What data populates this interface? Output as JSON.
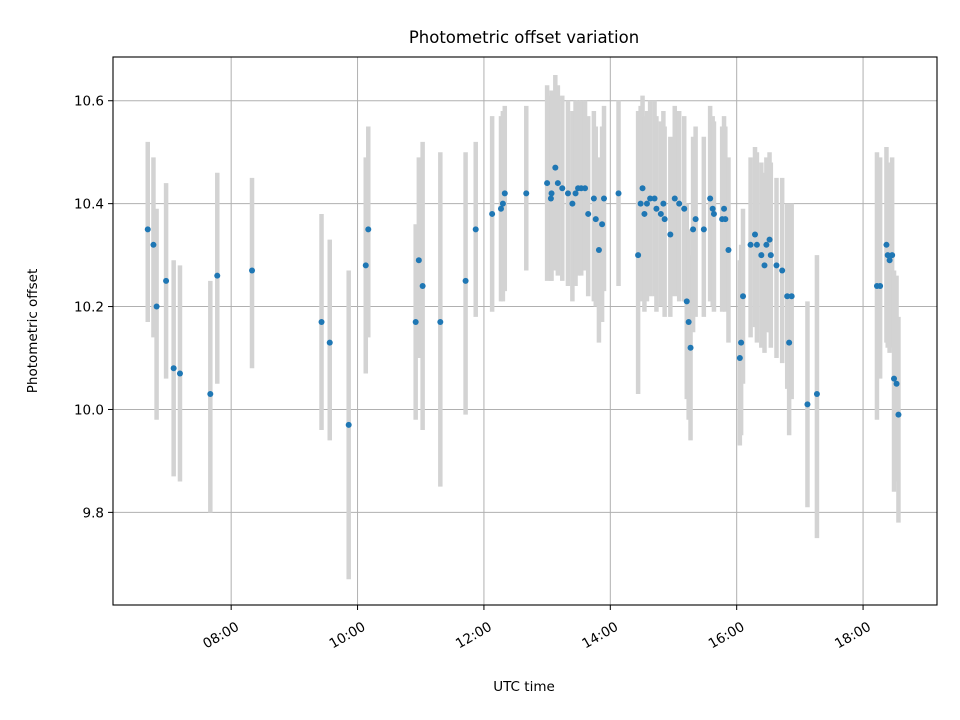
{
  "chart_data": {
    "type": "scatter",
    "title": "Photometric offset variation",
    "xlabel": "UTC time",
    "ylabel": "Photometric offset",
    "xlim_hours": [
      6.13,
      19.17
    ],
    "ylim": [
      9.62,
      10.685
    ],
    "grid": true,
    "x_ticks": [
      {
        "hour": 8,
        "label": "08:00"
      },
      {
        "hour": 10,
        "label": "10:00"
      },
      {
        "hour": 12,
        "label": "12:00"
      },
      {
        "hour": 14,
        "label": "14:00"
      },
      {
        "hour": 16,
        "label": "16:00"
      },
      {
        "hour": 18,
        "label": "18:00"
      }
    ],
    "y_ticks": [
      {
        "value": 9.8,
        "label": "9.8"
      },
      {
        "value": 10.0,
        "label": "10.0"
      },
      {
        "value": 10.2,
        "label": "10.2"
      },
      {
        "value": 10.4,
        "label": "10.4"
      },
      {
        "value": 10.6,
        "label": "10.6"
      }
    ],
    "colors": {
      "point": "#1f77b4",
      "errorbar": "#d3d3d3",
      "grid": "#b0b0b0"
    },
    "x_hours": [
      6.68,
      6.77,
      6.82,
      6.97,
      7.09,
      7.19,
      7.67,
      7.78,
      8.33,
      9.43,
      9.56,
      9.86,
      10.13,
      10.17,
      10.92,
      10.97,
      11.03,
      11.31,
      11.71,
      11.87,
      12.13,
      12.27,
      12.3,
      12.33,
      12.67,
      13.0,
      13.06,
      13.07,
      13.13,
      13.17,
      13.24,
      13.33,
      13.4,
      13.45,
      13.49,
      13.54,
      13.6,
      13.65,
      13.74,
      13.77,
      13.82,
      13.87,
      13.9,
      14.13,
      14.44,
      14.48,
      14.51,
      14.54,
      14.58,
      14.63,
      14.7,
      14.73,
      14.8,
      14.84,
      14.86,
      14.95,
      15.02,
      15.09,
      15.17,
      15.21,
      15.24,
      15.27,
      15.31,
      15.35,
      15.48,
      15.58,
      15.62,
      15.64,
      15.77,
      15.8,
      15.82,
      15.87,
      16.05,
      16.07,
      16.1,
      16.22,
      16.29,
      16.32,
      16.39,
      16.44,
      16.47,
      16.52,
      16.54,
      16.63,
      16.72,
      16.8,
      16.83,
      16.87,
      17.12,
      17.27,
      18.22,
      18.27,
      18.37,
      18.39,
      18.42,
      18.46,
      18.49,
      18.53,
      18.56
    ],
    "y_values": [
      10.35,
      10.32,
      10.2,
      10.25,
      10.08,
      10.07,
      10.03,
      10.26,
      10.27,
      10.17,
      10.13,
      9.97,
      10.28,
      10.35,
      10.17,
      10.29,
      10.24,
      10.17,
      10.25,
      10.35,
      10.38,
      10.39,
      10.4,
      10.42,
      10.42,
      10.44,
      10.41,
      10.42,
      10.47,
      10.44,
      10.43,
      10.42,
      10.4,
      10.42,
      10.43,
      10.43,
      10.43,
      10.38,
      10.41,
      10.37,
      10.31,
      10.36,
      10.41,
      10.42,
      10.3,
      10.4,
      10.43,
      10.38,
      10.4,
      10.41,
      10.41,
      10.39,
      10.38,
      10.4,
      10.37,
      10.34,
      10.41,
      10.4,
      10.39,
      10.21,
      10.17,
      10.12,
      10.35,
      10.37,
      10.35,
      10.41,
      10.39,
      10.38,
      10.37,
      10.39,
      10.37,
      10.31,
      10.1,
      10.13,
      10.22,
      10.32,
      10.34,
      10.32,
      10.3,
      10.28,
      10.32,
      10.33,
      10.3,
      10.28,
      10.27,
      10.22,
      10.13,
      10.22,
      10.01,
      10.03,
      10.24,
      10.24,
      10.32,
      10.3,
      10.29,
      10.3,
      10.06,
      10.05,
      9.99
    ],
    "err_low": [
      10.17,
      10.14,
      9.98,
      10.06,
      9.87,
      9.86,
      9.8,
      10.05,
      10.08,
      9.96,
      9.94,
      9.67,
      10.07,
      10.14,
      9.98,
      10.1,
      9.96,
      9.85,
      9.99,
      10.18,
      10.19,
      10.21,
      10.21,
      10.23,
      10.27,
      10.25,
      10.25,
      10.25,
      10.27,
      10.26,
      10.25,
      10.24,
      10.21,
      10.24,
      10.26,
      10.26,
      10.27,
      10.22,
      10.21,
      10.2,
      10.13,
      10.17,
      10.23,
      10.24,
      10.03,
      10.21,
      10.25,
      10.19,
      10.21,
      10.22,
      10.22,
      10.19,
      10.2,
      10.21,
      10.18,
      10.18,
      10.22,
      10.21,
      10.21,
      10.02,
      9.98,
      9.94,
      10.15,
      10.18,
      10.18,
      10.21,
      10.2,
      10.19,
      10.19,
      10.2,
      10.19,
      10.13,
      9.93,
      9.95,
      10.05,
      10.14,
      10.16,
      10.13,
      10.12,
      10.11,
      10.15,
      10.15,
      10.12,
      10.1,
      10.09,
      10.04,
      9.95,
      10.02,
      9.81,
      9.75,
      9.98,
      10.06,
      10.13,
      10.12,
      10.11,
      10.12,
      9.84,
      9.86,
      9.78
    ],
    "err_high": [
      10.52,
      10.49,
      10.39,
      10.44,
      10.29,
      10.28,
      10.25,
      10.46,
      10.45,
      10.38,
      10.33,
      10.27,
      10.49,
      10.55,
      10.36,
      10.49,
      10.52,
      10.5,
      10.5,
      10.52,
      10.57,
      10.57,
      10.58,
      10.59,
      10.59,
      10.63,
      10.61,
      10.62,
      10.65,
      10.63,
      10.61,
      10.6,
      10.58,
      10.6,
      10.6,
      10.6,
      10.6,
      10.57,
      10.58,
      10.55,
      10.49,
      10.55,
      10.59,
      10.6,
      10.58,
      10.59,
      10.61,
      10.57,
      10.58,
      10.6,
      10.6,
      10.57,
      10.56,
      10.58,
      10.55,
      10.53,
      10.59,
      10.58,
      10.57,
      10.4,
      10.35,
      10.3,
      10.53,
      10.55,
      10.53,
      10.59,
      10.57,
      10.56,
      10.55,
      10.57,
      10.55,
      10.49,
      10.29,
      10.32,
      10.39,
      10.49,
      10.51,
      10.5,
      10.48,
      10.46,
      10.49,
      10.5,
      10.48,
      10.45,
      10.45,
      10.4,
      10.31,
      10.4,
      10.21,
      10.3,
      10.5,
      10.49,
      10.51,
      10.48,
      10.47,
      10.49,
      10.27,
      10.26,
      10.18
    ]
  }
}
